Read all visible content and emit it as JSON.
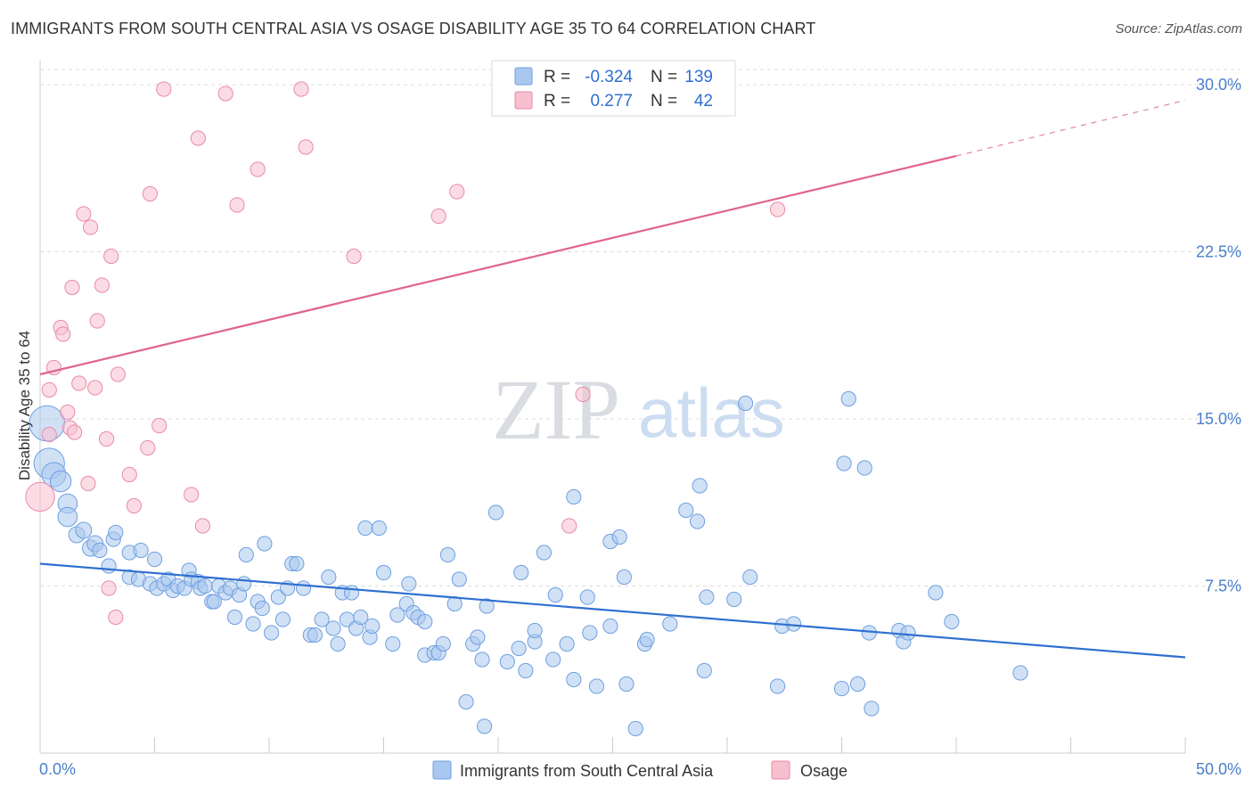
{
  "title": "IMMIGRANTS FROM SOUTH CENTRAL ASIA VS OSAGE DISABILITY AGE 35 TO 64 CORRELATION CHART",
  "source": "Source: ZipAtlas.com",
  "watermark": {
    "zip": "ZIP",
    "atlas": "atlas"
  },
  "legend": {
    "r_label": "R =",
    "n_label": "N =",
    "rows": [
      {
        "r": "-0.324",
        "n": "139",
        "color": "#a9c8ef",
        "stroke": "#6e9fe0"
      },
      {
        "r": "0.277",
        "n": "42",
        "color": "#f7bfcf",
        "stroke": "#e88aa6"
      }
    ]
  },
  "chart_data": {
    "type": "scatter",
    "xlabel": "",
    "ylabel": "Disability Age 35 to 64",
    "xlim": [
      0,
      50
    ],
    "ylim": [
      0,
      31
    ],
    "x_tick_labels": [
      "0.0%",
      "50.0%"
    ],
    "y_ticks": [
      7.5,
      15.0,
      22.5,
      30.0
    ],
    "y_tick_labels": [
      "7.5%",
      "15.0%",
      "22.5%",
      "30.0%"
    ],
    "grid": true,
    "series": [
      {
        "name": "Immigrants from South Central Asia",
        "color": "#a9c8ef",
        "stroke": "#6e9fe0",
        "trend": {
          "color": "#2f6fd0",
          "x0": 0,
          "y0": 8.5,
          "x1": 50,
          "y1": 4.3
        },
        "points": [
          [
            0.3,
            14.8,
            2.2
          ],
          [
            0.4,
            13.0,
            1.9
          ],
          [
            0.6,
            12.5,
            1.5
          ],
          [
            0.9,
            12.2,
            1.3
          ],
          [
            1.2,
            11.2,
            1.2
          ],
          [
            1.2,
            10.6,
            1.2
          ],
          [
            1.6,
            9.8,
            1.0
          ],
          [
            1.9,
            10.0,
            1.0
          ],
          [
            2.2,
            9.2,
            1.0
          ],
          [
            2.4,
            9.4,
            1.0
          ],
          [
            2.6,
            9.1,
            0.9
          ],
          [
            3.0,
            8.4,
            0.9
          ],
          [
            3.2,
            9.6,
            0.9
          ],
          [
            3.3,
            9.9,
            0.9
          ],
          [
            3.9,
            9.0,
            0.9
          ],
          [
            3.9,
            7.9,
            0.9
          ],
          [
            4.3,
            7.8,
            0.9
          ],
          [
            4.4,
            9.1,
            0.9
          ],
          [
            4.8,
            7.6,
            0.9
          ],
          [
            5.0,
            8.7,
            0.9
          ],
          [
            5.1,
            7.4,
            0.9
          ],
          [
            5.4,
            7.6,
            0.9
          ],
          [
            5.6,
            7.8,
            0.9
          ],
          [
            5.8,
            7.3,
            0.9
          ],
          [
            6.0,
            7.5,
            0.9
          ],
          [
            6.3,
            7.4,
            0.9
          ],
          [
            6.5,
            8.2,
            0.9
          ],
          [
            6.6,
            7.8,
            0.9
          ],
          [
            6.9,
            7.7,
            0.9
          ],
          [
            7.0,
            7.4,
            0.9
          ],
          [
            7.2,
            7.5,
            0.9
          ],
          [
            7.5,
            6.8,
            0.9
          ],
          [
            7.6,
            6.8,
            0.9
          ],
          [
            7.8,
            7.5,
            0.9
          ],
          [
            8.1,
            7.2,
            0.9
          ],
          [
            8.3,
            7.4,
            0.9
          ],
          [
            8.5,
            6.1,
            0.9
          ],
          [
            8.7,
            7.1,
            0.9
          ],
          [
            8.9,
            7.6,
            0.9
          ],
          [
            9.0,
            8.9,
            0.9
          ],
          [
            9.3,
            5.8,
            0.9
          ],
          [
            9.5,
            6.8,
            0.9
          ],
          [
            9.7,
            6.5,
            0.9
          ],
          [
            9.8,
            9.4,
            0.9
          ],
          [
            10.1,
            5.4,
            0.9
          ],
          [
            10.4,
            7.0,
            0.9
          ],
          [
            10.6,
            6.0,
            0.9
          ],
          [
            10.8,
            7.4,
            0.9
          ],
          [
            11.0,
            8.5,
            0.9
          ],
          [
            11.2,
            8.5,
            0.9
          ],
          [
            11.5,
            7.4,
            0.9
          ],
          [
            11.8,
            5.3,
            0.9
          ],
          [
            12.0,
            5.3,
            0.9
          ],
          [
            12.3,
            6.0,
            0.9
          ],
          [
            12.6,
            7.9,
            0.9
          ],
          [
            12.8,
            5.6,
            0.9
          ],
          [
            13.0,
            4.9,
            0.9
          ],
          [
            13.2,
            7.2,
            0.9
          ],
          [
            13.4,
            6.0,
            0.9
          ],
          [
            13.6,
            7.2,
            0.9
          ],
          [
            13.8,
            5.6,
            0.9
          ],
          [
            14.0,
            6.1,
            0.9
          ],
          [
            14.2,
            10.1,
            0.9
          ],
          [
            14.4,
            5.2,
            0.9
          ],
          [
            14.5,
            5.7,
            0.9
          ],
          [
            14.8,
            10.1,
            0.9
          ],
          [
            15.0,
            8.1,
            0.9
          ],
          [
            15.4,
            4.9,
            0.9
          ],
          [
            15.6,
            6.2,
            0.9
          ],
          [
            16.0,
            6.7,
            0.9
          ],
          [
            16.1,
            7.6,
            0.9
          ],
          [
            16.3,
            6.3,
            0.9
          ],
          [
            16.5,
            6.1,
            0.9
          ],
          [
            16.8,
            5.9,
            0.9
          ],
          [
            16.8,
            4.4,
            0.9
          ],
          [
            17.2,
            4.5,
            0.9
          ],
          [
            17.4,
            4.5,
            0.9
          ],
          [
            17.6,
            4.9,
            0.9
          ],
          [
            17.8,
            8.9,
            0.9
          ],
          [
            18.1,
            6.7,
            0.9
          ],
          [
            18.3,
            7.8,
            0.9
          ],
          [
            18.6,
            2.3,
            0.9
          ],
          [
            18.9,
            4.9,
            0.9
          ],
          [
            19.1,
            5.2,
            0.9
          ],
          [
            19.3,
            4.2,
            0.9
          ],
          [
            19.5,
            6.6,
            0.9
          ],
          [
            19.4,
            1.2,
            0.9
          ],
          [
            19.9,
            10.8,
            0.9
          ],
          [
            20.4,
            4.1,
            0.9
          ],
          [
            20.9,
            4.7,
            0.9
          ],
          [
            21.0,
            8.1,
            0.9
          ],
          [
            21.2,
            3.7,
            0.9
          ],
          [
            21.6,
            5.0,
            0.9
          ],
          [
            21.6,
            5.5,
            0.9
          ],
          [
            22.0,
            9.0,
            0.9
          ],
          [
            22.4,
            4.2,
            0.9
          ],
          [
            22.5,
            7.1,
            0.9
          ],
          [
            23.0,
            4.9,
            0.9
          ],
          [
            23.3,
            3.3,
            0.9
          ],
          [
            23.3,
            11.5,
            0.9
          ],
          [
            23.9,
            7.0,
            0.9
          ],
          [
            24.0,
            5.4,
            0.9
          ],
          [
            24.3,
            3.0,
            0.9
          ],
          [
            24.9,
            9.5,
            0.9
          ],
          [
            24.9,
            5.7,
            0.9
          ],
          [
            25.3,
            9.7,
            0.9
          ],
          [
            25.5,
            7.9,
            0.9
          ],
          [
            25.6,
            3.1,
            0.9
          ],
          [
            26.0,
            1.1,
            0.9
          ],
          [
            26.4,
            4.9,
            0.9
          ],
          [
            26.5,
            5.1,
            0.9
          ],
          [
            27.5,
            5.8,
            0.9
          ],
          [
            28.2,
            10.9,
            0.9
          ],
          [
            28.7,
            10.4,
            0.9
          ],
          [
            28.8,
            12.0,
            0.9
          ],
          [
            29.0,
            3.7,
            0.9
          ],
          [
            29.1,
            7.0,
            0.9
          ],
          [
            30.3,
            6.9,
            0.9
          ],
          [
            30.8,
            15.7,
            0.9
          ],
          [
            31.0,
            7.9,
            0.9
          ],
          [
            32.2,
            3.0,
            0.9
          ],
          [
            32.4,
            5.7,
            0.9
          ],
          [
            32.9,
            5.8,
            0.9
          ],
          [
            35.3,
            15.9,
            0.9
          ],
          [
            35.0,
            2.9,
            0.9
          ],
          [
            35.7,
            3.1,
            0.9
          ],
          [
            35.1,
            13.0,
            0.9
          ],
          [
            36.0,
            12.8,
            0.9
          ],
          [
            36.2,
            5.4,
            0.9
          ],
          [
            36.3,
            2.0,
            0.9
          ],
          [
            37.5,
            5.5,
            0.9
          ],
          [
            37.7,
            5.0,
            0.9
          ],
          [
            37.9,
            5.4,
            0.9
          ],
          [
            39.1,
            7.2,
            0.9
          ],
          [
            39.8,
            5.9,
            0.9
          ],
          [
            42.8,
            3.6,
            0.9
          ]
        ]
      },
      {
        "name": "Osage",
        "color": "#f7bfcf",
        "stroke": "#e88aa6",
        "trend": {
          "color": "#e0658c",
          "x0": 0,
          "y0": 17.0,
          "x1": 40,
          "y1": 26.8,
          "dash_to_x": 50,
          "dash_to_y": 29.3
        },
        "points": [
          [
            0.0,
            11.5,
            1.8
          ],
          [
            0.4,
            14.3,
            0.9
          ],
          [
            0.4,
            16.3,
            0.9
          ],
          [
            0.6,
            17.3,
            0.9
          ],
          [
            0.9,
            19.1,
            0.9
          ],
          [
            1.0,
            18.8,
            0.9
          ],
          [
            1.2,
            15.3,
            0.9
          ],
          [
            1.3,
            14.6,
            0.9
          ],
          [
            1.4,
            20.9,
            0.9
          ],
          [
            1.5,
            14.4,
            0.9
          ],
          [
            1.7,
            16.6,
            0.9
          ],
          [
            1.9,
            24.2,
            0.9
          ],
          [
            2.1,
            12.1,
            0.9
          ],
          [
            2.2,
            23.6,
            0.9
          ],
          [
            2.4,
            16.4,
            0.9
          ],
          [
            2.5,
            19.4,
            0.9
          ],
          [
            2.7,
            21.0,
            0.9
          ],
          [
            2.9,
            14.1,
            0.9
          ],
          [
            3.0,
            7.4,
            0.9
          ],
          [
            3.1,
            22.3,
            0.9
          ],
          [
            3.3,
            6.1,
            0.9
          ],
          [
            3.4,
            17.0,
            0.9
          ],
          [
            3.9,
            12.5,
            0.9
          ],
          [
            4.1,
            11.1,
            0.9
          ],
          [
            4.7,
            13.7,
            0.9
          ],
          [
            4.8,
            25.1,
            0.9
          ],
          [
            5.2,
            14.7,
            0.9
          ],
          [
            5.4,
            29.8,
            0.9
          ],
          [
            6.6,
            11.6,
            0.9
          ],
          [
            6.9,
            27.6,
            0.9
          ],
          [
            7.1,
            10.2,
            0.9
          ],
          [
            8.1,
            29.6,
            0.9
          ],
          [
            8.6,
            24.6,
            0.9
          ],
          [
            9.5,
            26.2,
            0.9
          ],
          [
            11.4,
            29.8,
            0.9
          ],
          [
            11.6,
            27.2,
            0.9
          ],
          [
            13.7,
            22.3,
            0.9
          ],
          [
            17.4,
            24.1,
            0.9
          ],
          [
            18.2,
            25.2,
            0.9
          ],
          [
            23.1,
            10.2,
            0.9
          ],
          [
            23.7,
            16.1,
            0.9
          ],
          [
            32.2,
            24.4,
            0.9
          ]
        ]
      }
    ]
  }
}
